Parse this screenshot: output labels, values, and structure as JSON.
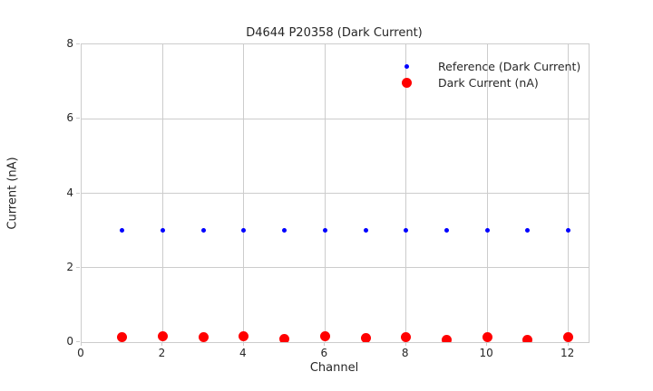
{
  "figure_title": "D4644 P20358 (Dark Current)",
  "colors": {
    "reference": "#0000ff",
    "dark_current": "#ff0000",
    "grid": "#cccccc",
    "text": "#262626",
    "background": "#ffffff"
  },
  "chart_data": {
    "type": "scatter",
    "title": "D4644 P20358 (Dark Current)",
    "xlabel": "Channel",
    "ylabel": "Current (nA)",
    "xlim": [
      0,
      12.5
    ],
    "ylim": [
      0,
      8
    ],
    "xticks": [
      0,
      2,
      4,
      6,
      8,
      10,
      12
    ],
    "yticks": [
      0,
      2,
      4,
      6,
      8
    ],
    "grid": true,
    "legend_position": "upper right",
    "legend_frame": false,
    "x": [
      1,
      2,
      3,
      4,
      5,
      6,
      7,
      8,
      9,
      10,
      11,
      12
    ],
    "series": [
      {
        "name": "Reference (Dark Current)",
        "color": "#0000ff",
        "marker_size": 5,
        "values": [
          3.0,
          3.0,
          3.0,
          3.0,
          3.0,
          3.0,
          3.0,
          3.0,
          3.0,
          3.0,
          3.0,
          3.0
        ]
      },
      {
        "name": "Dark Current (nA)",
        "color": "#ff0000",
        "marker_size": 11,
        "values": [
          0.13,
          0.16,
          0.13,
          0.17,
          0.09,
          0.17,
          0.1,
          0.14,
          0.06,
          0.13,
          0.07,
          0.13
        ]
      }
    ]
  }
}
